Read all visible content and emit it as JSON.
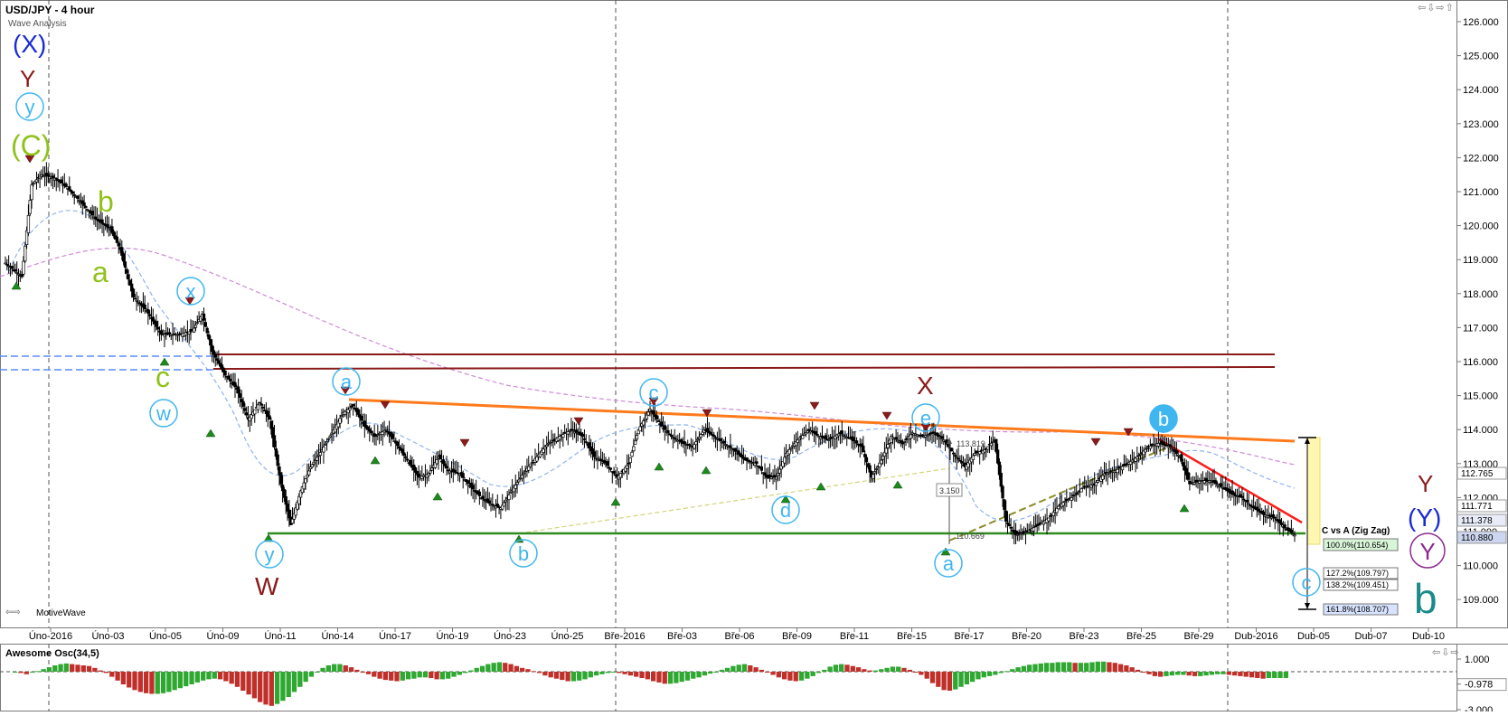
{
  "header": {
    "symbol_title": "USD/JPY - 4 hour",
    "study_name": "Wave Analysis",
    "brand": "MotiveWave",
    "brand_arrows": "⇦⇨",
    "window_buttons": "⇦⇩⇨⇧",
    "osc_buttons": "⇦⇩⇨"
  },
  "colors": {
    "background": "#ffffff",
    "candle": "#000000",
    "support_line": "#2e8b1f",
    "resistance_line": "#ff7a1a",
    "channel_lines": "#8b1a1a",
    "downtrend_line": "#ff1a1a",
    "blue_dashed": "#5b8cff",
    "fast_ma": "#8fb3f0",
    "slow_ma": "#d08ad8",
    "rising_dashed": "#8b8b2a",
    "target_box": "#fff7b0",
    "osc_green": "#2fa832",
    "osc_red": "#c0302a"
  },
  "chart_data": [
    {
      "type": "candlestick",
      "title": "USD/JPY - 4 hour",
      "y_axis": {
        "side": "right",
        "ticks": [
          "126.000",
          "125.000",
          "124.000",
          "123.000",
          "122.000",
          "121.000",
          "120.000",
          "119.000",
          "118.000",
          "117.000",
          "116.000",
          "115.000",
          "114.000",
          "113.000",
          "112.000",
          "111.000",
          "110.000",
          "109.000"
        ],
        "range": [
          108.6,
          126.4
        ]
      },
      "x_axis": {
        "ticks": [
          "Úno-2016",
          "Úno-03",
          "Úno-05",
          "Úno-09",
          "Úno-11",
          "Úno-14",
          "Úno-17",
          "Úno-19",
          "Úno-23",
          "Úno-25",
          "Bře-2016",
          "Bře-03",
          "Bře-06",
          "Bře-09",
          "Bře-11",
          "Bře-15",
          "Bře-17",
          "Bře-20",
          "Bře-23",
          "Bře-25",
          "Bře-29",
          "Dub-2016",
          "Dub-05",
          "Dub-07",
          "Dub-10"
        ]
      },
      "price_path": [
        [
          0,
          118.9
        ],
        [
          10,
          118.5
        ],
        [
          16,
          121.2
        ],
        [
          22,
          121.5
        ],
        [
          30,
          121.4
        ],
        [
          38,
          121.1
        ],
        [
          46,
          120.7
        ],
        [
          55,
          120.2
        ],
        [
          64,
          119.9
        ],
        [
          70,
          119.3
        ],
        [
          78,
          117.9
        ],
        [
          86,
          117.5
        ],
        [
          95,
          116.8
        ],
        [
          106,
          116.8
        ],
        [
          114,
          116.9
        ],
        [
          120,
          117.4
        ],
        [
          126,
          116.3
        ],
        [
          134,
          115.6
        ],
        [
          141,
          115.2
        ],
        [
          148,
          114.3
        ],
        [
          155,
          114.8
        ],
        [
          161,
          114.3
        ],
        [
          168,
          112.4
        ],
        [
          174,
          111.2
        ],
        [
          180,
          112.2
        ],
        [
          186,
          112.9
        ],
        [
          193,
          113.4
        ],
        [
          199,
          113.9
        ],
        [
          206,
          114.5
        ],
        [
          212,
          114.7
        ],
        [
          219,
          114.1
        ],
        [
          225,
          113.8
        ],
        [
          232,
          114.0
        ],
        [
          238,
          113.6
        ],
        [
          245,
          113.1
        ],
        [
          252,
          112.6
        ],
        [
          258,
          112.7
        ],
        [
          264,
          113.2
        ],
        [
          270,
          112.8
        ],
        [
          277,
          112.7
        ],
        [
          284,
          112.3
        ],
        [
          290,
          112.0
        ],
        [
          296,
          111.8
        ],
        [
          302,
          111.7
        ],
        [
          310,
          112.3
        ],
        [
          317,
          112.8
        ],
        [
          324,
          113.2
        ],
        [
          331,
          113.6
        ],
        [
          338,
          113.8
        ],
        [
          345,
          114.0
        ],
        [
          352,
          113.8
        ],
        [
          359,
          113.2
        ],
        [
          366,
          113.0
        ],
        [
          373,
          112.6
        ],
        [
          380,
          113.0
        ],
        [
          386,
          114.0
        ],
        [
          393,
          114.6
        ],
        [
          400,
          114.1
        ],
        [
          406,
          113.8
        ],
        [
          413,
          113.6
        ],
        [
          419,
          113.5
        ],
        [
          426,
          114.0
        ],
        [
          432,
          113.8
        ],
        [
          438,
          113.6
        ],
        [
          444,
          113.4
        ],
        [
          451,
          113.1
        ],
        [
          458,
          113.0
        ],
        [
          464,
          112.6
        ],
        [
          470,
          112.6
        ],
        [
          476,
          113.3
        ],
        [
          483,
          113.7
        ],
        [
          490,
          114.0
        ],
        [
          496,
          113.8
        ],
        [
          502,
          113.7
        ],
        [
          509,
          113.9
        ],
        [
          516,
          113.7
        ],
        [
          522,
          113.5
        ],
        [
          528,
          112.6
        ],
        [
          534,
          113.1
        ],
        [
          540,
          113.8
        ],
        [
          547,
          113.6
        ],
        [
          553,
          113.9
        ],
        [
          559,
          113.8
        ],
        [
          566,
          113.9
        ],
        [
          572,
          113.7
        ],
        [
          578,
          113.3
        ],
        [
          585,
          112.9
        ],
        [
          591,
          113.3
        ],
        [
          597,
          113.4
        ],
        [
          603,
          113.7
        ],
        [
          610,
          111.3
        ],
        [
          616,
          110.9
        ],
        [
          623,
          111.0
        ],
        [
          630,
          111.2
        ],
        [
          636,
          111.4
        ],
        [
          643,
          111.8
        ],
        [
          650,
          112.0
        ],
        [
          657,
          112.3
        ],
        [
          664,
          112.4
        ],
        [
          670,
          112.7
        ],
        [
          677,
          112.8
        ],
        [
          684,
          113.0
        ],
        [
          690,
          113.2
        ],
        [
          697,
          113.5
        ],
        [
          703,
          113.6
        ],
        [
          710,
          113.5
        ],
        [
          716,
          113.2
        ],
        [
          722,
          112.4
        ],
        [
          729,
          112.5
        ],
        [
          735,
          112.5
        ],
        [
          742,
          112.3
        ],
        [
          748,
          112.1
        ],
        [
          754,
          112.0
        ],
        [
          761,
          111.7
        ],
        [
          767,
          111.5
        ],
        [
          774,
          111.4
        ],
        [
          780,
          111.1
        ],
        [
          786,
          110.9
        ]
      ],
      "annotations": {
        "wave_labels": [
          {
            "text": "(X)",
            "color": "#1a2bd6"
          },
          {
            "text": "Y",
            "color": "#8b1a1a"
          },
          {
            "text": "y",
            "color": "#3fb6f0"
          },
          {
            "text": "(C)",
            "color": "#8fc21a"
          },
          {
            "text": "b",
            "color": "#8fc21a"
          },
          {
            "text": "a",
            "color": "#8fc21a"
          },
          {
            "text": "x",
            "color": "#3fb6f0"
          },
          {
            "text": "c",
            "color": "#8fc21a"
          },
          {
            "text": "w",
            "color": "#3fb6f0"
          },
          {
            "text": "y",
            "color": "#3fb6f0"
          },
          {
            "text": "W",
            "color": "#8b1a1a"
          },
          {
            "text": "a",
            "color": "#3fb6f0"
          },
          {
            "text": "b",
            "color": "#3fb6f0"
          },
          {
            "text": "c",
            "color": "#3fb6f0"
          },
          {
            "text": "d",
            "color": "#3fb6f0"
          },
          {
            "text": "e",
            "color": "#3fb6f0"
          },
          {
            "text": "X",
            "color": "#8b1a1a"
          },
          {
            "text": "a",
            "color": "#3fb6f0"
          },
          {
            "text": "b",
            "color": "#3fb6f0"
          },
          {
            "text": "c",
            "color": "#3fb6f0"
          },
          {
            "text": "Y",
            "color": "#8b1a1a"
          },
          {
            "text": "(Y)",
            "color": "#1a2bd6"
          },
          {
            "text": "Y",
            "color": "#8b2a8b"
          },
          {
            "text": "b",
            "color": "#1a8a8a"
          }
        ],
        "measure_labels": [
          "113.819",
          "3.150",
          "110.669"
        ],
        "fib_title": "C vs A (Zig Zag)",
        "fib_levels": [
          "100.0%(110.654)",
          "127.2%(109.797)",
          "138.2%(109.451)",
          "161.8%(108.707)"
        ],
        "price_tags": [
          "112.765",
          "111.771",
          "111.378",
          "110.880"
        ]
      }
    },
    {
      "type": "bar",
      "title": "Awesome Osc(34,5)",
      "y_axis": {
        "ticks": [
          "1.000",
          "-0.978",
          "-3.000"
        ],
        "range": [
          -3.3,
          1.5
        ]
      },
      "series": [
        {
          "values": [
            -0.05,
            -0.1,
            -0.2,
            -0.05,
            0.05,
            0.2,
            0.35,
            0.5,
            0.6,
            0.65,
            0.6,
            0.55,
            0.5,
            0.45,
            0.3,
            0.1,
            -0.1,
            -0.4,
            -0.7,
            -1.0,
            -1.25,
            -1.45,
            -1.6,
            -1.7,
            -1.75,
            -1.75,
            -1.7,
            -1.6,
            -1.45,
            -1.3,
            -1.15,
            -1.0,
            -0.85,
            -0.7,
            -0.6,
            -0.55,
            -0.6,
            -0.75,
            -0.95,
            -1.2,
            -1.5,
            -1.8,
            -2.1,
            -2.4,
            -2.6,
            -2.7,
            -2.55,
            -2.3,
            -2.0,
            -1.6,
            -1.2,
            -0.8,
            -0.4,
            0.0,
            0.3,
            0.5,
            0.6,
            0.6,
            0.5,
            0.35,
            0.15,
            0.0,
            -0.2,
            -0.4,
            -0.55,
            -0.65,
            -0.7,
            -0.75,
            -0.7,
            -0.6,
            -0.55,
            -0.45,
            -0.45,
            -0.5,
            -0.6,
            -0.6,
            -0.55,
            -0.4,
            -0.25,
            -0.1,
            0.1,
            0.3,
            0.45,
            0.6,
            0.7,
            0.75,
            0.7,
            0.6,
            0.45,
            0.3,
            0.2,
            0.05,
            -0.1,
            -0.3,
            -0.45,
            -0.55,
            -0.65,
            -0.75,
            -0.75,
            -0.7,
            -0.6,
            -0.45,
            -0.3,
            -0.2,
            -0.1,
            -0.05,
            -0.1,
            -0.2,
            -0.3,
            -0.4,
            -0.5,
            -0.6,
            -0.75,
            -0.85,
            -0.95,
            -0.95,
            -0.9,
            -0.8,
            -0.7,
            -0.55,
            -0.45,
            -0.3,
            -0.15,
            0.0,
            0.15,
            0.3,
            0.45,
            0.55,
            0.6,
            0.5,
            0.35,
            0.15,
            -0.05,
            -0.25,
            -0.45,
            -0.6,
            -0.7,
            -0.75,
            -0.7,
            -0.55,
            -0.35,
            -0.1,
            0.15,
            0.4,
            0.55,
            0.6,
            0.55,
            0.45,
            0.35,
            0.2,
            0.1,
            0.1,
            0.2,
            0.3,
            0.4,
            0.4,
            0.3,
            0.15,
            0.0,
            -0.25,
            -0.55,
            -0.9,
            -1.2,
            -1.45,
            -1.5,
            -1.4,
            -1.2,
            -1.0,
            -0.8,
            -0.6,
            -0.45,
            -0.35,
            -0.25,
            -0.1,
            0.05,
            0.2,
            0.35,
            0.45,
            0.55,
            0.6,
            0.65,
            0.7,
            0.7,
            0.75,
            0.75,
            0.75,
            0.7,
            0.7,
            0.7,
            0.75,
            0.8,
            0.8,
            0.75,
            0.7,
            0.6,
            0.5,
            0.35,
            0.15,
            -0.05,
            -0.2,
            -0.35,
            -0.4,
            -0.35,
            -0.3,
            -0.25,
            -0.25,
            -0.3,
            -0.35,
            -0.35,
            -0.3,
            -0.25,
            -0.2,
            -0.2,
            -0.25,
            -0.3,
            -0.35,
            -0.4,
            -0.45,
            -0.5,
            -0.55,
            -0.5,
            -0.5,
            -0.5,
            -0.5
          ]
        }
      ]
    }
  ]
}
